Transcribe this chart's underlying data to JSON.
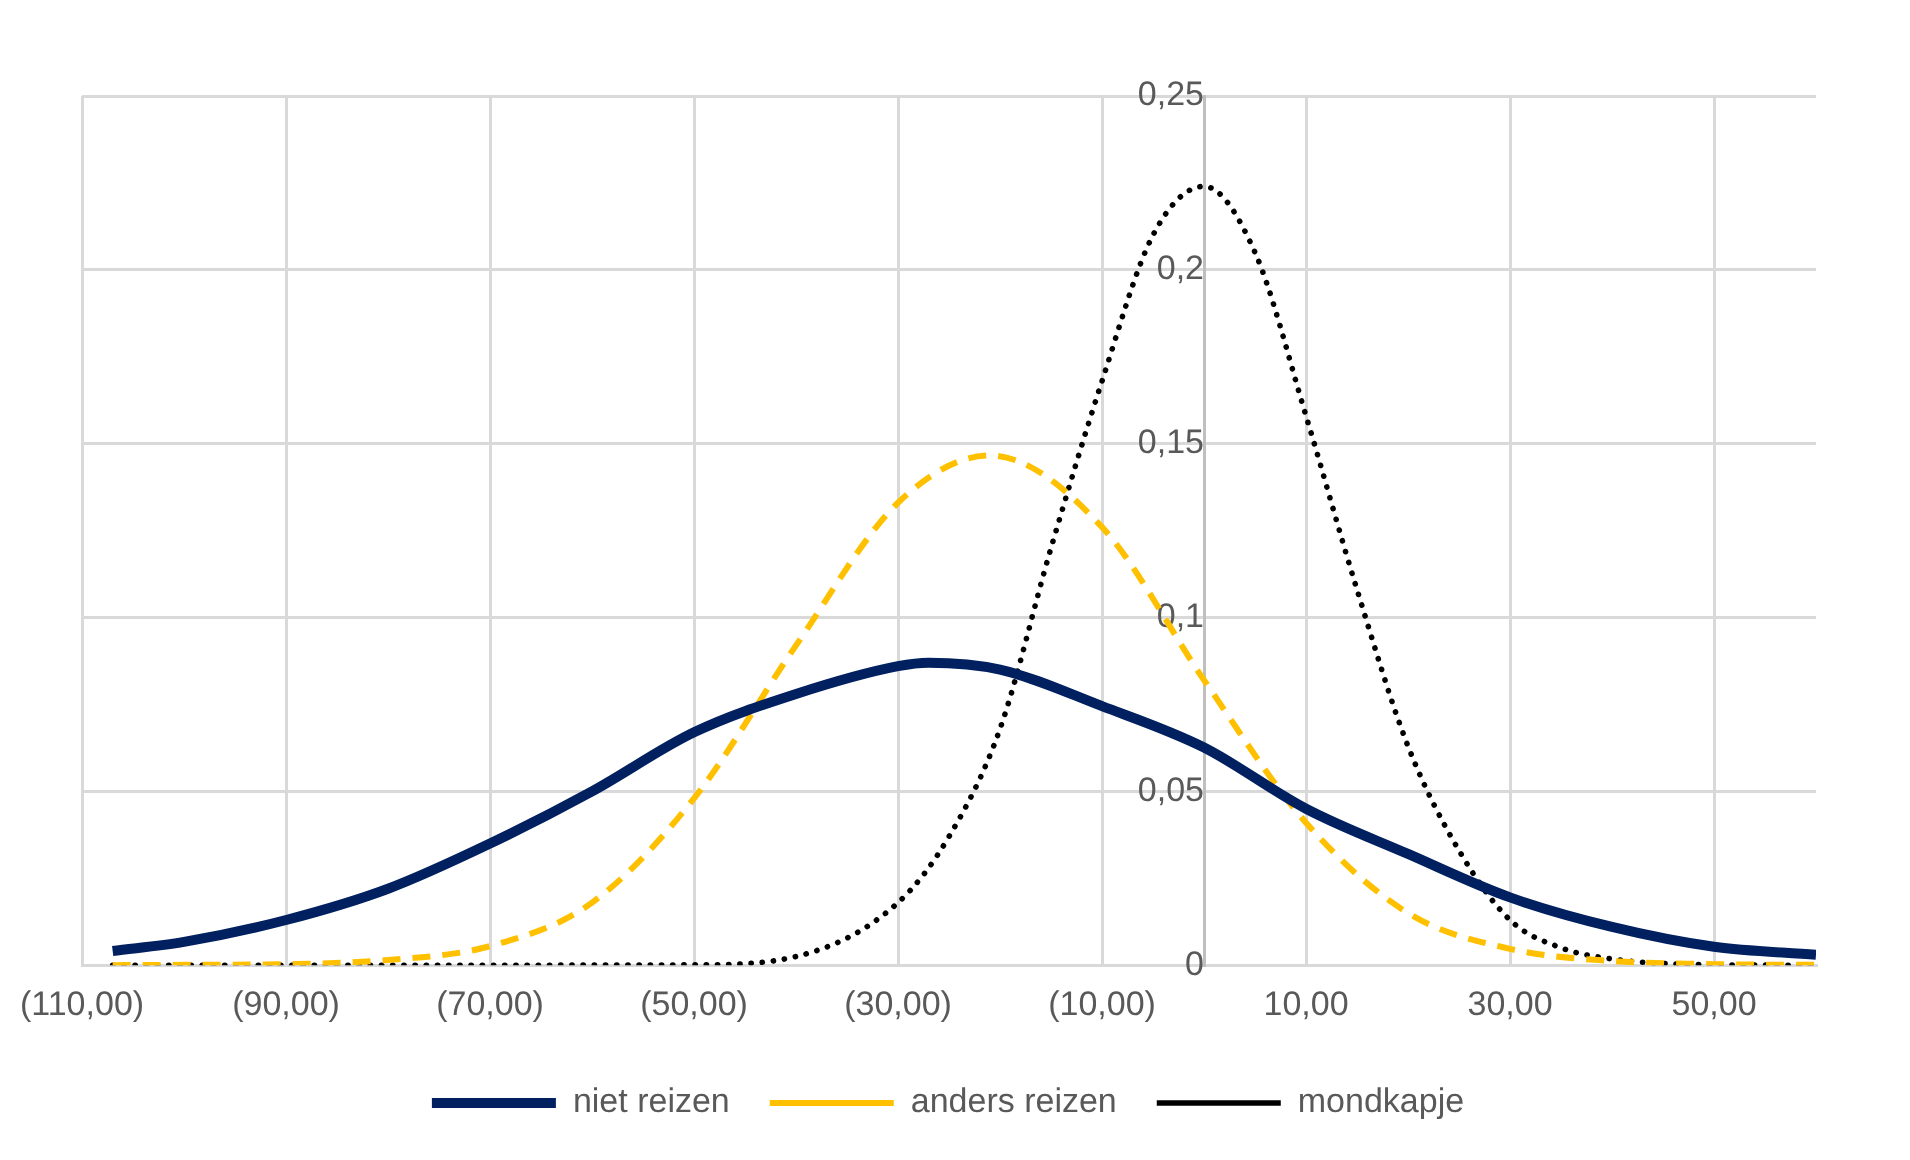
{
  "chart_data": {
    "type": "line",
    "xlim": [
      -110,
      60
    ],
    "ylim": [
      0,
      0.25
    ],
    "xticks": [
      {
        "value": -110,
        "label": "(110,00)"
      },
      {
        "value": -90,
        "label": "(90,00)"
      },
      {
        "value": -70,
        "label": "(70,00)"
      },
      {
        "value": -50,
        "label": "(50,00)"
      },
      {
        "value": -30,
        "label": "(30,00)"
      },
      {
        "value": -10,
        "label": "(10,00)"
      },
      {
        "value": 10,
        "label": "10,00"
      },
      {
        "value": 30,
        "label": "30,00"
      },
      {
        "value": 50,
        "label": "50,00"
      }
    ],
    "yticks": [
      {
        "value": 0,
        "label": "0"
      },
      {
        "value": 0.05,
        "label": "0,05"
      },
      {
        "value": 0.1,
        "label": "0,1"
      },
      {
        "value": 0.15,
        "label": "0,15"
      },
      {
        "value": 0.2,
        "label": "0,2"
      },
      {
        "value": 0.25,
        "label": "0,25"
      }
    ],
    "grid": true,
    "legend": "bottom",
    "series": [
      {
        "name": "niet reizen",
        "color": "#002060",
        "line_style": "solid",
        "x": [
          -107,
          -100,
          -90,
          -80,
          -70,
          -60,
          -50,
          -40,
          -30,
          -27,
          -20,
          -10,
          0,
          10,
          20,
          30,
          40,
          50,
          60
        ],
        "values": [
          0.0041,
          0.0067,
          0.013,
          0.022,
          0.035,
          0.05,
          0.067,
          0.078,
          0.086,
          0.087,
          0.085,
          0.0745,
          0.0626,
          0.045,
          0.032,
          0.0195,
          0.011,
          0.0053,
          0.003
        ]
      },
      {
        "name": "anders reizen",
        "color": "#ffc000",
        "line_style": "dashed",
        "x": [
          -107,
          -100,
          -90,
          -80,
          -70,
          -60,
          -50,
          -40,
          -30,
          -21,
          -10,
          0,
          10,
          20,
          30,
          40,
          50,
          60
        ],
        "values": [
          0,
          0.0001,
          0.0003,
          0.0015,
          0.0055,
          0.018,
          0.048,
          0.092,
          0.133,
          0.1466,
          0.126,
          0.082,
          0.041,
          0.015,
          0.0047,
          0.0012,
          0.0003,
          0.0001
        ]
      },
      {
        "name": "mondkapje",
        "color": "#000000",
        "line_style": "dotted",
        "x": [
          -107,
          -90,
          -70,
          -50,
          -40,
          -30,
          -25,
          -20,
          -15,
          -10,
          -5,
          0,
          5,
          10,
          15,
          20,
          25,
          30,
          35,
          40,
          50,
          60
        ],
        "values": [
          0,
          0,
          0,
          0.0001,
          0.0025,
          0.018,
          0.037,
          0.068,
          0.12,
          0.168,
          0.21,
          0.224,
          0.205,
          0.158,
          0.108,
          0.063,
          0.033,
          0.013,
          0.005,
          0.0018,
          0.0001,
          0
        ]
      }
    ]
  }
}
